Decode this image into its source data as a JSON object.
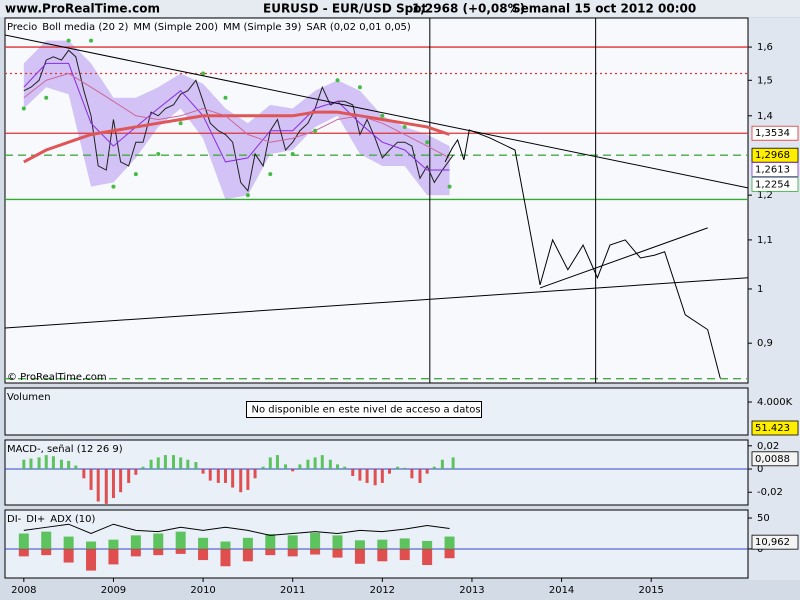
{
  "header": {
    "site": "www.ProRealTime.com",
    "instrument": "EURUSD - EUR/USD Spot",
    "quote": "1,2968 (+0,08%)",
    "period": "Semanal  15 oct 2012 00:00",
    "copyright": "© ProRealTime.com"
  },
  "chart_data": [
    {
      "type": "line",
      "log": true,
      "ylim": [
        0.833,
        1.693
      ],
      "yticks": [
        {
          "value": 0.9,
          "label": "0,9"
        },
        1,
        {
          "value": 1.1,
          "label": "1,1"
        },
        {
          "value": 1.2,
          "label": "1,2"
        },
        {
          "value": 1.4,
          "label": "1,4"
        },
        {
          "value": 1.5,
          "label": "1,5"
        },
        {
          "value": 1.6,
          "label": "1,6"
        }
      ],
      "band": {
        "color": "#c8b4f2",
        "x": [
          2008,
          2008.25,
          2008.5,
          2008.75,
          2009,
          2009.25,
          2009.5,
          2009.75,
          2010,
          2010.25,
          2010.5,
          2010.75,
          2011,
          2011.25,
          2011.5,
          2011.75,
          2012,
          2012.25,
          2012.5,
          2012.75
        ],
        "upper": [
          1.55,
          1.62,
          1.62,
          1.55,
          1.45,
          1.45,
          1.48,
          1.52,
          1.49,
          1.42,
          1.38,
          1.43,
          1.42,
          1.47,
          1.5,
          1.47,
          1.4,
          1.37,
          1.35,
          1.32
        ],
        "lower": [
          1.42,
          1.48,
          1.46,
          1.22,
          1.23,
          1.29,
          1.37,
          1.42,
          1.34,
          1.19,
          1.2,
          1.3,
          1.31,
          1.37,
          1.4,
          1.3,
          1.27,
          1.27,
          1.2,
          1.2
        ]
      },
      "series": [
        {
          "name": "Precio",
          "color": "#222222",
          "render": "line",
          "width": 1,
          "x": [
            2008,
            2008.08,
            2008.17,
            2008.25,
            2008.33,
            2008.42,
            2008.5,
            2008.58,
            2008.67,
            2008.75,
            2008.83,
            2008.92,
            2009,
            2009.08,
            2009.17,
            2009.25,
            2009.33,
            2009.42,
            2009.5,
            2009.58,
            2009.67,
            2009.75,
            2009.83,
            2009.92,
            2010,
            2010.08,
            2010.17,
            2010.25,
            2010.33,
            2010.42,
            2010.5,
            2010.58,
            2010.67,
            2010.75,
            2010.83,
            2010.92,
            2011,
            2011.08,
            2011.17,
            2011.25,
            2011.33,
            2011.42,
            2011.5,
            2011.58,
            2011.67,
            2011.75,
            2011.83,
            2011.92,
            2012,
            2012.08,
            2012.17,
            2012.25,
            2012.33,
            2012.42,
            2012.5,
            2012.58,
            2012.67,
            2012.79
          ],
          "values": [
            1.47,
            1.48,
            1.5,
            1.56,
            1.57,
            1.56,
            1.59,
            1.57,
            1.47,
            1.4,
            1.27,
            1.26,
            1.39,
            1.28,
            1.27,
            1.33,
            1.33,
            1.41,
            1.4,
            1.42,
            1.43,
            1.46,
            1.47,
            1.5,
            1.44,
            1.38,
            1.36,
            1.35,
            1.33,
            1.23,
            1.21,
            1.3,
            1.27,
            1.36,
            1.39,
            1.31,
            1.33,
            1.36,
            1.38,
            1.42,
            1.48,
            1.43,
            1.44,
            1.44,
            1.43,
            1.35,
            1.39,
            1.34,
            1.29,
            1.31,
            1.33,
            1.33,
            1.32,
            1.24,
            1.27,
            1.23,
            1.26,
            1.2968
          ]
        },
        {
          "name": "Boll media (20 2)",
          "color": "#8a2be2",
          "render": "line",
          "width": 1,
          "x": [
            2008,
            2008.25,
            2008.5,
            2008.75,
            2009,
            2009.25,
            2009.5,
            2009.75,
            2010,
            2010.25,
            2010.5,
            2010.75,
            2011,
            2011.25,
            2011.5,
            2011.75,
            2012,
            2012.25,
            2012.5,
            2012.75
          ],
          "values": [
            1.48,
            1.55,
            1.55,
            1.38,
            1.32,
            1.37,
            1.42,
            1.47,
            1.4,
            1.28,
            1.29,
            1.36,
            1.36,
            1.42,
            1.44,
            1.38,
            1.33,
            1.31,
            1.26,
            1.26
          ]
        },
        {
          "name": "MM (Simple 200)",
          "color": "#e05555",
          "render": "line",
          "width": 3,
          "x": [
            2008,
            2008.25,
            2008.5,
            2008.75,
            2009,
            2009.25,
            2009.5,
            2009.75,
            2010,
            2010.25,
            2010.5,
            2010.75,
            2011,
            2011.25,
            2011.5,
            2011.75,
            2012,
            2012.25,
            2012.5,
            2012.75
          ],
          "values": [
            1.28,
            1.31,
            1.33,
            1.35,
            1.36,
            1.37,
            1.38,
            1.39,
            1.4,
            1.4,
            1.4,
            1.4,
            1.4,
            1.41,
            1.41,
            1.4,
            1.39,
            1.38,
            1.37,
            1.35
          ]
        },
        {
          "name": "MM (Simple 39)",
          "color": "#cc6699",
          "render": "line",
          "width": 1,
          "x": [
            2008,
            2008.25,
            2008.5,
            2008.75,
            2009,
            2009.25,
            2009.5,
            2009.75,
            2010,
            2010.25,
            2010.5,
            2010.75,
            2011,
            2011.25,
            2011.5,
            2011.75,
            2012,
            2012.25,
            2012.5,
            2012.75
          ],
          "values": [
            1.45,
            1.5,
            1.52,
            1.48,
            1.44,
            1.4,
            1.39,
            1.4,
            1.42,
            1.4,
            1.35,
            1.33,
            1.34,
            1.36,
            1.39,
            1.4,
            1.38,
            1.35,
            1.32,
            1.29
          ]
        },
        {
          "name": "SAR (0,02 0,01 0,05)",
          "color": "#44bb44",
          "render": "dots",
          "width": 2,
          "x": [
            2008,
            2008.25,
            2008.5,
            2008.75,
            2009,
            2009.25,
            2009.5,
            2009.75,
            2010,
            2010.25,
            2010.5,
            2010.75,
            2011,
            2011.25,
            2011.5,
            2011.75,
            2012,
            2012.25,
            2012.5,
            2012.75
          ],
          "values": [
            1.42,
            1.45,
            1.62,
            1.62,
            1.22,
            1.25,
            1.3,
            1.38,
            1.52,
            1.45,
            1.2,
            1.25,
            1.3,
            1.36,
            1.5,
            1.48,
            1.4,
            1.37,
            1.33,
            1.22
          ]
        },
        {
          "color": "#000000",
          "render": "line",
          "width": 1,
          "x": [
            2012.7,
            2012.78,
            2012.84,
            2012.91,
            2012.97,
            2013.2,
            2013.48,
            2013.76,
            2013.9,
            2014.07,
            2014.24,
            2014.4,
            2014.54,
            2014.71,
            2014.88,
            2015.04,
            2015.15,
            2015.38,
            2015.63,
            2015.77
          ],
          "values": [
            1.28,
            1.315,
            1.336,
            1.285,
            1.362,
            1.341,
            1.31,
            1.008,
            1.1,
            1.038,
            1.089,
            1.022,
            1.089,
            1.1,
            1.062,
            1.068,
            1.075,
            0.951,
            0.924,
            0.841
          ]
        },
        {
          "color": "#000000",
          "render": "line",
          "width": 1,
          "x": [
            2007.79,
            2016.08
          ],
          "values": [
            1.638,
            1.217
          ]
        },
        {
          "color": "#000000",
          "render": "line",
          "width": 1,
          "x": [
            2007.79,
            2016.08
          ],
          "values": [
            0.927,
            1.022
          ]
        },
        {
          "color": "#000000",
          "render": "line",
          "width": 1,
          "x": [
            2013.76,
            2015.63
          ],
          "values": [
            1.002,
            1.126
          ]
        }
      ],
      "levels": [
        {
          "value": 1.6,
          "color": "#dd3333",
          "style": "solid"
        },
        {
          "value": 1.52,
          "color": "#dd3333",
          "style": "dotted"
        },
        {
          "value": 1.3534,
          "color": "#dd3333",
          "style": "solid"
        },
        {
          "value": 1.2968,
          "color": "#44aa44",
          "style": "dashed"
        },
        {
          "value": 1.19,
          "color": "#33aa33",
          "style": "solid"
        },
        {
          "value": 0.84,
          "color": "#44aa44",
          "style": "dashed"
        }
      ],
      "vlines": [
        2012.53,
        2014.38
      ],
      "price_labels": [
        {
          "value": 1.3534,
          "label": "1,3534",
          "color": "#dd3333",
          "background": "#ffffff"
        },
        {
          "value": 1.2968,
          "label": "1,2968",
          "color": "#000000",
          "background": "#ffee00"
        },
        {
          "value": 1.2613,
          "label": "1,2613",
          "color": "#8a2be2",
          "background": "#ffffff"
        },
        {
          "value": 1.2254,
          "label": "1,2254",
          "color": "#33aa33",
          "background": "#ffffff"
        }
      ]
    },
    {
      "type": "bar",
      "title": "Volumen",
      "title_color": "#33aa33",
      "note": "No disponible en este nivel de acceso a datos",
      "ylim": [
        0,
        5700000
      ],
      "yticks": [
        {
          "value": 4000000,
          "label": "4.000K"
        }
      ],
      "series": [],
      "price_labels": [
        {
          "value": 51423,
          "label": "51.423",
          "color": "#000000",
          "background": "#ffee00"
        }
      ]
    },
    {
      "type": "bar",
      "title": "MACD-, señal (12 26 9)",
      "title_color": "#33aa33",
      "ylim": [
        -0.031,
        0.025
      ],
      "yticks": [
        {
          "value": 0.02,
          "label": "0,02"
        },
        0,
        {
          "value": -0.02,
          "label": "-0,02"
        }
      ],
      "zero_line_color": "#3344cc",
      "series": [
        {
          "color": "#44bb44",
          "negative_color": "#dd3333",
          "render": "bars",
          "width": 3,
          "x": [
            2008,
            2008.08,
            2008.17,
            2008.25,
            2008.33,
            2008.42,
            2008.5,
            2008.58,
            2008.67,
            2008.75,
            2008.83,
            2008.92,
            2009,
            2009.08,
            2009.17,
            2009.25,
            2009.33,
            2009.42,
            2009.5,
            2009.58,
            2009.67,
            2009.75,
            2009.83,
            2009.92,
            2010,
            2010.08,
            2010.17,
            2010.25,
            2010.33,
            2010.42,
            2010.5,
            2010.58,
            2010.67,
            2010.75,
            2010.83,
            2010.92,
            2011,
            2011.08,
            2011.17,
            2011.25,
            2011.33,
            2011.42,
            2011.5,
            2011.58,
            2011.67,
            2011.75,
            2011.83,
            2011.92,
            2012,
            2012.08,
            2012.17,
            2012.25,
            2012.33,
            2012.42,
            2012.5,
            2012.58,
            2012.67,
            2012.79
          ],
          "values": [
            0.008,
            0.009,
            0.01,
            0.012,
            0.011,
            0.008,
            0.007,
            0.003,
            -0.008,
            -0.018,
            -0.028,
            -0.03,
            -0.025,
            -0.02,
            -0.012,
            -0.005,
            0.002,
            0.008,
            0.01,
            0.012,
            0.012,
            0.01,
            0.008,
            0.006,
            -0.004,
            -0.01,
            -0.012,
            -0.012,
            -0.016,
            -0.02,
            -0.018,
            -0.008,
            0.002,
            0.01,
            0.012,
            0.004,
            -0.002,
            0.004,
            0.008,
            0.01,
            0.012,
            0.008,
            0.004,
            0.002,
            -0.006,
            -0.01,
            -0.012,
            -0.014,
            -0.012,
            -0.004,
            0.002,
            0.001,
            -0.008,
            -0.012,
            -0.004,
            0.002,
            0.008,
            0.01
          ]
        }
      ],
      "price_labels": [
        {
          "value": 0.0088,
          "label": "0,0088",
          "color": "#000000",
          "background": "#f4f4f4"
        }
      ]
    },
    {
      "type": "line",
      "ylim": [
        -47,
        63
      ],
      "yticks": [
        0,
        50
      ],
      "zero_line_color": "#3344cc",
      "xlim": [
        2007.79,
        2016.08
      ],
      "xticks": [
        2008,
        2009,
        2010,
        2011,
        2012,
        2013,
        2014,
        2015
      ],
      "series": [
        {
          "name": "DI-",
          "color": "#dd3333",
          "render": "bars",
          "width": 10,
          "x": [
            2008,
            2008.25,
            2008.5,
            2008.75,
            2009,
            2009.25,
            2009.5,
            2009.75,
            2010,
            2010.25,
            2010.5,
            2010.75,
            2011,
            2011.25,
            2011.5,
            2011.75,
            2012,
            2012.25,
            2012.5,
            2012.75
          ],
          "values": [
            -12,
            -10,
            -22,
            -35,
            -25,
            -12,
            -10,
            -8,
            -18,
            -28,
            -20,
            -10,
            -12,
            -9,
            -14,
            -24,
            -20,
            -18,
            -26,
            -15
          ]
        },
        {
          "name": "DI+",
          "color": "#44bb44",
          "render": "bars",
          "width": 10,
          "x": [
            2008,
            2008.25,
            2008.5,
            2008.75,
            2009,
            2009.25,
            2009.5,
            2009.75,
            2010,
            2010.25,
            2010.5,
            2010.75,
            2011,
            2011.25,
            2011.5,
            2011.75,
            2012,
            2012.25,
            2012.5,
            2012.75
          ],
          "values": [
            25,
            28,
            20,
            12,
            15,
            22,
            25,
            28,
            18,
            12,
            18,
            24,
            22,
            26,
            22,
            14,
            15,
            17,
            13,
            20
          ]
        },
        {
          "name": "ADX (10)",
          "color": "#000000",
          "render": "line",
          "width": 1,
          "x": [
            2008,
            2008.25,
            2008.5,
            2008.75,
            2009,
            2009.25,
            2009.5,
            2009.75,
            2010,
            2010.25,
            2010.5,
            2010.75,
            2011,
            2011.25,
            2011.5,
            2011.75,
            2012,
            2012.25,
            2012.5,
            2012.75
          ],
          "values": [
            30,
            35,
            40,
            25,
            40,
            30,
            28,
            35,
            30,
            35,
            30,
            22,
            25,
            28,
            25,
            30,
            28,
            32,
            38,
            33
          ]
        }
      ],
      "price_labels": [
        {
          "value": 10.962,
          "label": "10,962",
          "color": "#000000",
          "background": "#f4f4f4"
        }
      ]
    }
  ]
}
